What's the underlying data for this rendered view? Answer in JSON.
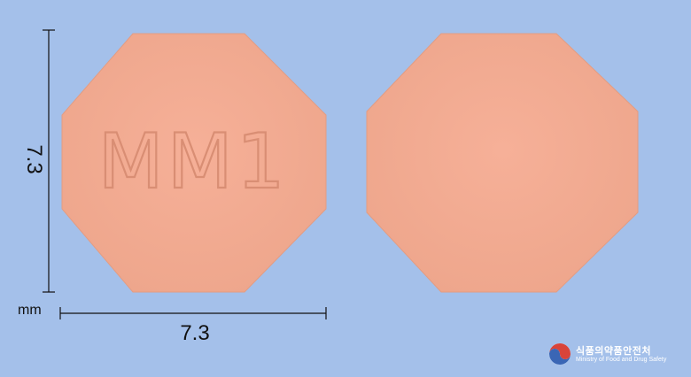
{
  "pill": {
    "front_imprint": "MM1",
    "back_imprint": "",
    "shape": "octagon",
    "color": "#f5ac92",
    "background": "#a4c0ea"
  },
  "dimensions": {
    "height_label": "7.3",
    "width_label": "7.3",
    "unit": "mm"
  },
  "brand": {
    "name_ko": "식품의약품안전처",
    "name_en": "Ministry of Food and Drug Safety"
  }
}
